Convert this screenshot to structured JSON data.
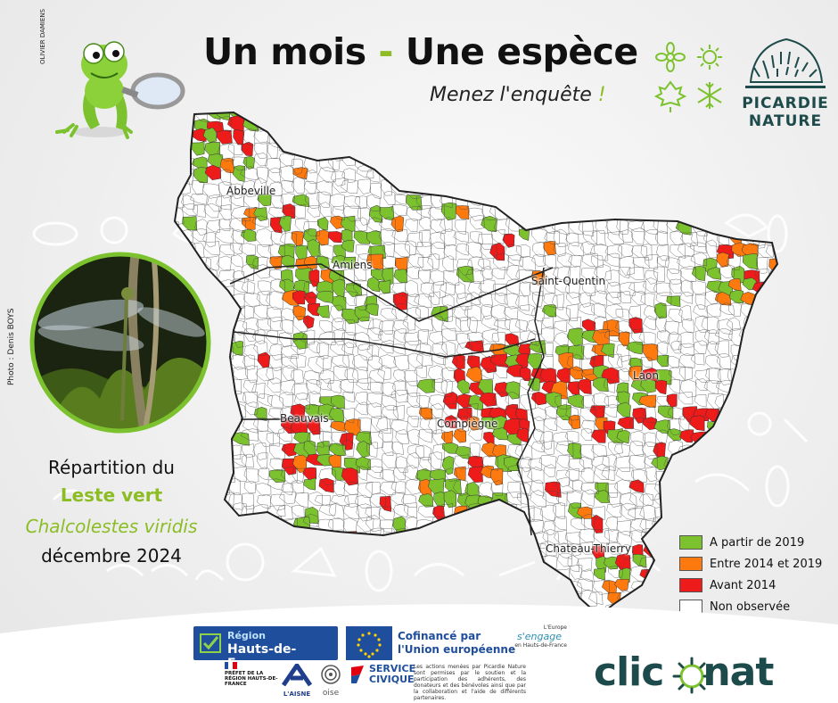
{
  "header": {
    "title_part1": "Un mois",
    "title_dash": "-",
    "title_part2": "Une espèce",
    "subtitle_text": "Menez l'enquête",
    "subtitle_bang": "!"
  },
  "frog_credit": "OLIVIER DAMIENS",
  "photo_credit": "Photo : Denis BOYS",
  "picardie_nature": {
    "line1": "PICARDIE",
    "line2": "NATURE"
  },
  "species": {
    "line1": "Répartition du",
    "common_name": "Leste vert",
    "latin_name": "Chalcolestes viridis",
    "date": "décembre 2024"
  },
  "map": {
    "cities": [
      "Abbeville",
      "Amiens",
      "Saint-Quentin",
      "Laon",
      "Beauvais",
      "Compiègne",
      "Chateau-Thierry"
    ],
    "colors": {
      "green": "#7cc22e",
      "orange": "#ff7a0e",
      "red": "#ee1b1b",
      "white": "#ffffff",
      "border": "#333333"
    }
  },
  "legend": [
    {
      "label": "A partir de 2019",
      "color": "#7cc22e"
    },
    {
      "label": "Entre 2014 et 2019",
      "color": "#ff7a0e"
    },
    {
      "label": "Avant 2014",
      "color": "#ee1b1b"
    },
    {
      "label": "Non observée",
      "color": "#ffffff"
    }
  ],
  "footer": {
    "region_top": "Région",
    "region_name": "Hauts-de-France",
    "eu_line1": "Cofinancé par",
    "eu_line2": "l'Union européenne",
    "europe_engage_1": "L'Europe",
    "europe_engage_2": "s'engage",
    "europe_engage_3": "en Hauts-de-France",
    "prefet": "PRÉFET DE LA RÉGION HAUTS-DE-FRANCE",
    "aisne": "L'AISNE",
    "oise": "oise",
    "service_civique_1": "SERVICE",
    "service_civique_2": "CIVIQUE",
    "disclaimer": "Les actions menées par Picardie Nature sont permises par le soutien et la participation des adhérents, des donateurs et des bénévoles ainsi que par la collaboration et l'aide de différents partenaires.",
    "brand_left": "clic",
    "brand_right": "nat"
  }
}
